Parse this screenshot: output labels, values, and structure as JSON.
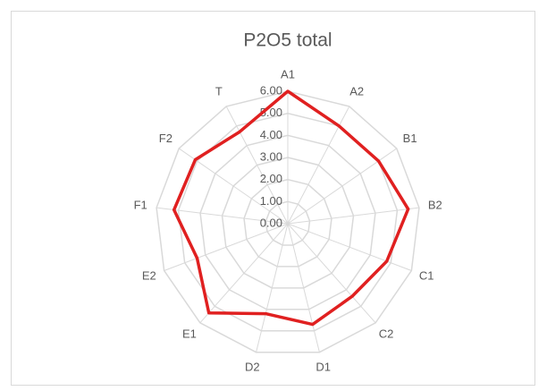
{
  "chart_data": {
    "type": "radar",
    "title": "P2O5 total",
    "categories": [
      "A1",
      "A2",
      "B1",
      "B2",
      "C1",
      "C2",
      "D1",
      "D2",
      "E1",
      "E2",
      "F1",
      "F2",
      "T"
    ],
    "values": [
      6.0,
      5.0,
      5.0,
      5.5,
      4.8,
      4.4,
      4.7,
      4.2,
      5.4,
      4.4,
      5.2,
      5.1,
      4.7
    ],
    "color": "#e02020",
    "ylim": [
      0,
      6
    ],
    "yticks": [
      {
        "value": 0,
        "label": "0.00"
      },
      {
        "value": 1,
        "label": "1.00"
      },
      {
        "value": 2,
        "label": "2.00"
      },
      {
        "value": 3,
        "label": "3.00"
      },
      {
        "value": 4,
        "label": "4.00"
      },
      {
        "value": 5,
        "label": "5.00"
      },
      {
        "value": 6,
        "label": "6.00"
      }
    ],
    "grid": true
  }
}
